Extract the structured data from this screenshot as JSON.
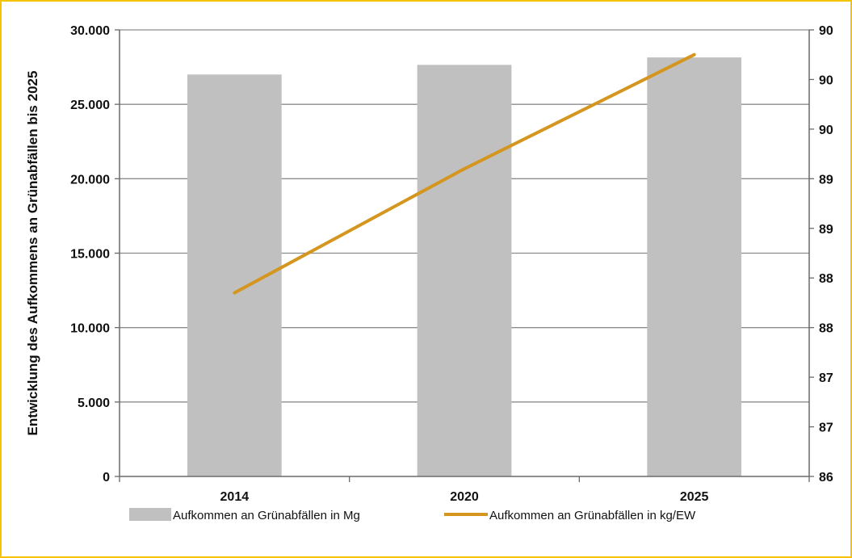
{
  "chart_data": {
    "type": "bar",
    "categories": [
      "2014",
      "2020",
      "2025"
    ],
    "ylabel": "Entwicklung des Aufkommens an Grünabfällen bis 2025",
    "y_left": {
      "min": 0,
      "max": 30000,
      "ticks": [
        0,
        5000,
        10000,
        15000,
        20000,
        25000,
        30000
      ],
      "tick_labels": [
        "0",
        "5.000",
        "10.000",
        "15.000",
        "20.000",
        "25.000",
        "30.000"
      ]
    },
    "y_right": {
      "min": 86,
      "max": 90.5,
      "ticks": [
        86,
        86.5,
        87,
        87.5,
        88,
        88.5,
        89,
        89.5,
        90,
        90.5
      ],
      "tick_labels": [
        "86",
        "87",
        "87",
        "88",
        "88",
        "89",
        "89",
        "90",
        "90",
        "90"
      ]
    },
    "series": [
      {
        "name": "Aufkommen an Grünabfällen in Mg",
        "type": "bar",
        "axis": "left",
        "color": "#c0c0c0",
        "values": [
          27000,
          27650,
          28150
        ]
      },
      {
        "name": "Aufkommen an Grünabfällen in kg/EW",
        "type": "line",
        "axis": "right",
        "color": "#d4961e",
        "values": [
          87.85,
          89.1,
          90.25
        ]
      }
    ],
    "grid": true,
    "legend": "bottom"
  }
}
